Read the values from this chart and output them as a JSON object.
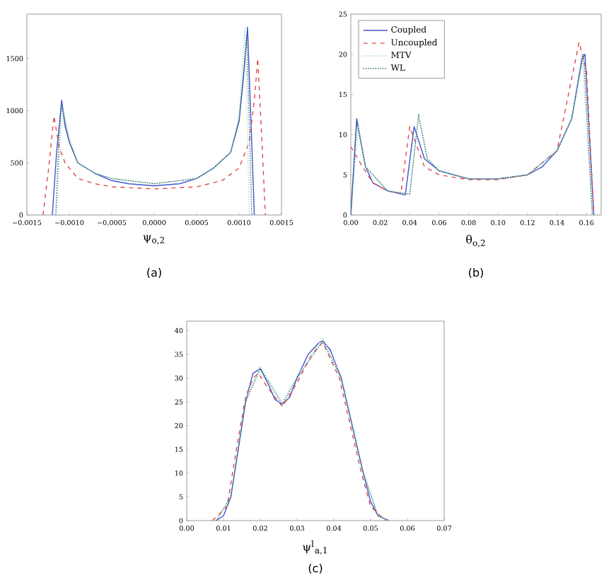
{
  "chart_data": [
    {
      "type": "line",
      "xlabel": "ψ$_{o,2}$",
      "annotations": [
        "(a)"
      ],
      "xlim": [
        -0.0015,
        0.0015
      ],
      "ylim": [
        0,
        1925
      ],
      "xticks": [
        {
          "value": -0.0015,
          "label": "−0.0015"
        },
        {
          "value": -0.001,
          "label": "−0.0010"
        },
        {
          "value": -0.0005,
          "label": "−0.0005"
        },
        {
          "value": 0,
          "label": "0.0000"
        },
        {
          "value": 0.0005,
          "label": "0.0005"
        },
        {
          "value": 0.001,
          "label": "0.0010"
        },
        {
          "value": 0.0015,
          "label": "0.0015"
        }
      ],
      "yticks": [
        0,
        500,
        1000,
        1500
      ],
      "series": [
        {
          "color": "#3f54d0",
          "line_style": "solid",
          "x": [
            -0.0012,
            -0.00115,
            -0.00109,
            -0.00105,
            -0.001,
            -0.0009,
            -0.0007,
            -0.0005,
            -0.0003,
            0,
            0.0003,
            0.0005,
            0.0007,
            0.0009,
            0.001,
            0.00105,
            0.0011,
            0.00114,
            0.00118
          ],
          "values": [
            0,
            600,
            1100,
            850,
            700,
            500,
            400,
            330,
            300,
            280,
            300,
            350,
            450,
            600,
            900,
            1300,
            1800,
            900,
            0
          ]
        },
        {
          "color": "#e04848",
          "line_style": "dashed",
          "x": [
            -0.00131,
            -0.00125,
            -0.00118,
            -0.00112,
            -0.00105,
            -0.0009,
            -0.0007,
            -0.0005,
            0,
            0.0005,
            0.0008,
            0.001,
            0.00112,
            0.00118,
            0.00122,
            0.00127,
            0.00131
          ],
          "values": [
            0,
            400,
            950,
            650,
            500,
            350,
            300,
            270,
            250,
            270,
            330,
            450,
            700,
            1100,
            1500,
            700,
            0
          ]
        },
        {
          "color": "#9fd8d0",
          "line_style": "dotted",
          "x": [
            -0.00115,
            -0.00111,
            -0.00107,
            -0.001,
            -0.0009,
            -0.0007,
            -0.0005,
            0,
            0.0005,
            0.0007,
            0.0009,
            0.001,
            0.00107,
            0.0011,
            0.00112
          ],
          "values": [
            0,
            700,
            1000,
            750,
            500,
            400,
            350,
            300,
            350,
            450,
            600,
            950,
            1800,
            800,
            0
          ]
        },
        {
          "color": "#2e6b4e",
          "line_style": "dotted",
          "x": [
            -0.00116,
            -0.00112,
            -0.00109,
            -0.001,
            -0.0009,
            -0.0007,
            -0.0005,
            0,
            0.0005,
            0.0007,
            0.0009,
            0.001,
            0.00109,
            0.00112,
            0.00115
          ],
          "values": [
            0,
            750,
            1050,
            700,
            500,
            400,
            350,
            300,
            350,
            450,
            600,
            900,
            1700,
            900,
            0
          ]
        }
      ]
    },
    {
      "type": "line",
      "xlabel": "θ$_{o,2}$",
      "annotations": [
        "(b)"
      ],
      "xlim": [
        0,
        0.17
      ],
      "ylim": [
        0,
        25
      ],
      "legend": "top left",
      "xticks": [
        {
          "value": 0,
          "label": "0.00"
        },
        {
          "value": 0.02,
          "label": "0.02"
        },
        {
          "value": 0.04,
          "label": "0.04"
        },
        {
          "value": 0.06,
          "label": "0.06"
        },
        {
          "value": 0.08,
          "label": "0.08"
        },
        {
          "value": 0.1,
          "label": "0.10"
        },
        {
          "value": 0.12,
          "label": "0.12"
        },
        {
          "value": 0.14,
          "label": "0.14"
        },
        {
          "value": 0.16,
          "label": "0.16"
        }
      ],
      "yticks": [
        0,
        5,
        10,
        15,
        20,
        25
      ],
      "series": [
        {
          "name": "Coupled",
          "color": "#3f54d0",
          "line_style": "solid",
          "x": [
            0,
            0.004,
            0.01,
            0.015,
            0.025,
            0.037,
            0.043,
            0.05,
            0.06,
            0.08,
            0.1,
            0.12,
            0.13,
            0.14,
            0.15,
            0.157,
            0.159,
            0.165
          ],
          "values": [
            0,
            12,
            6,
            4,
            3,
            2.5,
            11,
            7,
            5.5,
            4.5,
            4.5,
            5,
            6,
            8,
            12,
            19.5,
            20,
            0
          ]
        },
        {
          "name": "Uncoupled",
          "color": "#e04848",
          "line_style": "dashed",
          "x": [
            0,
            0.008,
            0.015,
            0.025,
            0.034,
            0.04,
            0.05,
            0.06,
            0.08,
            0.1,
            0.12,
            0.14,
            0.155,
            0.16,
            0.165
          ],
          "values": [
            8.5,
            6,
            4,
            3,
            2.7,
            11,
            6,
            5,
            4.4,
            4.4,
            5,
            8,
            21.5,
            18,
            0
          ]
        },
        {
          "name": "MTV",
          "color": "#9fd8d0",
          "line_style": "dotted",
          "x": [
            0,
            0.005,
            0.01,
            0.025,
            0.04,
            0.046,
            0.052,
            0.06,
            0.08,
            0.1,
            0.12,
            0.14,
            0.15,
            0.157,
            0.164
          ],
          "values": [
            0,
            11,
            6,
            3,
            2.6,
            12,
            7,
            5.5,
            4.5,
            4.5,
            5,
            8,
            12,
            20,
            0
          ]
        },
        {
          "name": "WL",
          "color": "#2e6b4e",
          "line_style": "dotted",
          "x": [
            0,
            0.004,
            0.01,
            0.025,
            0.04,
            0.046,
            0.052,
            0.06,
            0.08,
            0.1,
            0.12,
            0.14,
            0.15,
            0.158,
            0.164
          ],
          "values": [
            0,
            11.5,
            6,
            3,
            2.6,
            12.5,
            7,
            5.5,
            4.5,
            4.5,
            5,
            8,
            12,
            20,
            0
          ]
        }
      ]
    },
    {
      "type": "line",
      "xlabel": "ψ$^{l}$$_{a,1}$",
      "annotations": [
        "(c)"
      ],
      "xlim": [
        0,
        0.07
      ],
      "ylim": [
        0,
        42
      ],
      "xticks": [
        {
          "value": 0,
          "label": "0.00"
        },
        {
          "value": 0.01,
          "label": "0.01"
        },
        {
          "value": 0.02,
          "label": "0.02"
        },
        {
          "value": 0.03,
          "label": "0.03"
        },
        {
          "value": 0.04,
          "label": "0.04"
        },
        {
          "value": 0.05,
          "label": "0.05"
        },
        {
          "value": 0.06,
          "label": "0.06"
        },
        {
          "value": 0.07,
          "label": "0.07"
        }
      ],
      "yticks": [
        0,
        5,
        10,
        15,
        20,
        25,
        30,
        35,
        40
      ],
      "series": [
        {
          "color": "#3f54d0",
          "line_style": "solid",
          "x": [
            0.008,
            0.01,
            0.012,
            0.014,
            0.016,
            0.018,
            0.02,
            0.022,
            0.024,
            0.026,
            0.028,
            0.03,
            0.033,
            0.036,
            0.037,
            0.039,
            0.042,
            0.045,
            0.048,
            0.05,
            0.052,
            0.055
          ],
          "values": [
            0,
            1,
            5,
            15,
            25,
            31,
            32,
            29,
            25.5,
            24.5,
            26,
            30,
            35,
            37.5,
            37.8,
            36,
            30,
            20,
            10,
            4,
            1,
            0
          ]
        },
        {
          "color": "#e04848",
          "line_style": "dashed",
          "x": [
            0.007,
            0.011,
            0.0135,
            0.016,
            0.018,
            0.0195,
            0.022,
            0.026,
            0.03,
            0.034,
            0.037,
            0.0415,
            0.0445,
            0.0475,
            0.05,
            0.054
          ],
          "values": [
            0,
            3,
            15,
            26,
            30,
            31,
            28,
            24,
            29,
            35,
            37.5,
            30,
            20,
            10,
            3,
            0
          ]
        },
        {
          "color": "#9fd8d0",
          "line_style": "dotted",
          "x": [
            0.008,
            0.012,
            0.016,
            0.02,
            0.026,
            0.03,
            0.037,
            0.042,
            0.045,
            0.048,
            0.052,
            0.055
          ],
          "values": [
            0,
            5,
            25.5,
            32.5,
            25,
            30.5,
            38.5,
            30.5,
            20.5,
            10.5,
            1,
            0
          ]
        },
        {
          "color": "#2e6b4e",
          "line_style": "dotted",
          "x": [
            0.008,
            0.012,
            0.016,
            0.02,
            0.026,
            0.03,
            0.037,
            0.042,
            0.045,
            0.048,
            0.052,
            0.055
          ],
          "values": [
            0,
            5,
            25,
            32,
            24.5,
            30,
            37.8,
            30,
            20,
            10,
            1,
            0
          ]
        }
      ]
    }
  ]
}
